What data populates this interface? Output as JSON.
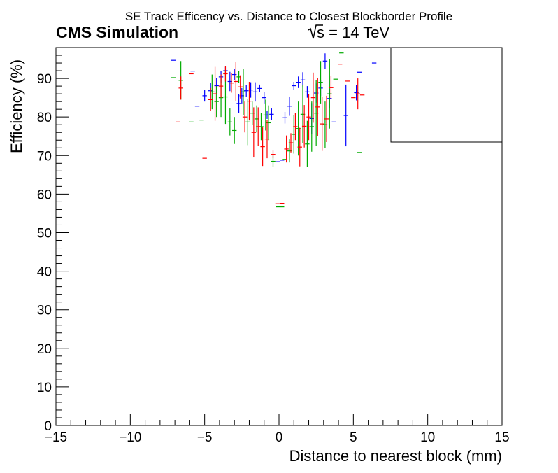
{
  "chart_data": {
    "type": "scatter",
    "title": "SE Track Efficency vs. Distance to Closest Blockborder Profile",
    "experiment_label": "CMS Simulation",
    "energy_label": "s = 14 TeV",
    "xlabel": "Distance to nearest block (mm)",
    "ylabel": "Efficiency (%)",
    "xlim": [
      -15,
      15
    ],
    "ylim": [
      0,
      98
    ],
    "x_ticks": [
      -15,
      -10,
      -5,
      0,
      5,
      10,
      15
    ],
    "x_tick_labels": [
      "−15",
      "−10",
      "−5",
      "0",
      "5",
      "10",
      "15"
    ],
    "y_ticks": [
      0,
      10,
      20,
      30,
      40,
      50,
      60,
      70,
      80,
      90
    ],
    "y_tick_labels": [
      "0",
      "10",
      "20",
      "30",
      "40",
      "50",
      "60",
      "70",
      "80",
      "90"
    ],
    "grid": false,
    "legend": "top-right (empty box)",
    "series": [
      {
        "color": "#0000ff",
        "points": [
          [
            -7.1,
            94.7,
            0
          ],
          [
            -5.8,
            91.9,
            0
          ],
          [
            -5.5,
            82.8,
            0
          ],
          [
            -5.0,
            85.5,
            1.5
          ],
          [
            -4.6,
            86.8,
            2.0
          ],
          [
            -4.2,
            88.1,
            2.0
          ],
          [
            -3.9,
            90.4,
            1.5
          ],
          [
            -3.6,
            92.0,
            1.0
          ],
          [
            -3.3,
            89.2,
            2.5
          ],
          [
            -3.0,
            91.0,
            1.5
          ],
          [
            -2.7,
            83.5,
            2.5
          ],
          [
            -2.5,
            85.5,
            2.0
          ],
          [
            -2.2,
            86.8,
            1.5
          ],
          [
            -1.9,
            87.0,
            2.0
          ],
          [
            -1.6,
            86.5,
            2.5
          ],
          [
            -1.3,
            87.4,
            1.0
          ],
          [
            -1.0,
            85.0,
            1.5
          ],
          [
            -0.8,
            80.5,
            1.0
          ],
          [
            -0.5,
            80.7,
            1.5
          ],
          [
            -0.1,
            68.4,
            0
          ],
          [
            0.2,
            68.8,
            0
          ],
          [
            0.4,
            79.8,
            1.5
          ],
          [
            0.7,
            82.8,
            2.5
          ],
          [
            1.0,
            88.1,
            1.0
          ],
          [
            1.3,
            89.0,
            1.5
          ],
          [
            1.6,
            89.6,
            2.0
          ],
          [
            1.9,
            86.5,
            1.5
          ],
          [
            2.2,
            79.6,
            4.0
          ],
          [
            2.5,
            86.2,
            2.5
          ],
          [
            2.8,
            87.5,
            2.0
          ],
          [
            3.1,
            94.5,
            2.0
          ],
          [
            3.4,
            84.8,
            2.5
          ],
          [
            3.7,
            78.7,
            0
          ],
          [
            4.5,
            80.4,
            8.0
          ],
          [
            5.2,
            86.3,
            2.0
          ],
          [
            5.4,
            91.6,
            0
          ],
          [
            6.4,
            94.0,
            0
          ]
        ]
      },
      {
        "color": "#00aa00",
        "points": [
          [
            -7.1,
            90.2,
            0
          ],
          [
            -6.6,
            89.5,
            5.0
          ],
          [
            -5.9,
            78.7,
            0
          ],
          [
            -5.2,
            79.2,
            0
          ],
          [
            -4.5,
            86.5,
            4.5
          ],
          [
            -4.2,
            84.0,
            4.0
          ],
          [
            -3.9,
            85.0,
            5.0
          ],
          [
            -3.6,
            85.2,
            7.0
          ],
          [
            -3.3,
            78.7,
            3.5
          ],
          [
            -3.0,
            76.5,
            3.5
          ],
          [
            -2.7,
            90.4,
            1.5
          ],
          [
            -2.4,
            86.5,
            6.0
          ],
          [
            -2.1,
            78.7,
            6.0
          ],
          [
            -1.8,
            81.0,
            3.0
          ],
          [
            -1.5,
            79.5,
            3.5
          ],
          [
            -1.2,
            77.5,
            3.5
          ],
          [
            -0.9,
            80.5,
            4.0
          ],
          [
            -0.7,
            78.5,
            4.5
          ],
          [
            -0.4,
            68.5,
            1.5
          ],
          [
            -0.05,
            56.7,
            0
          ],
          [
            0.2,
            56.7,
            0
          ],
          [
            0.4,
            69.0,
            0
          ],
          [
            0.7,
            71.2,
            3.0
          ],
          [
            1.0,
            75.5,
            5.0
          ],
          [
            1.3,
            77.0,
            7.0
          ],
          [
            1.6,
            80.7,
            7.5
          ],
          [
            1.9,
            73.0,
            6.0
          ],
          [
            2.2,
            77.5,
            6.5
          ],
          [
            2.5,
            81.0,
            8.5
          ],
          [
            2.8,
            89.0,
            5.5
          ],
          [
            3.1,
            78.0,
            6.0
          ],
          [
            3.4,
            86.0,
            9.0
          ],
          [
            3.8,
            89.8,
            0
          ],
          [
            4.2,
            96.6,
            0
          ],
          [
            5.4,
            70.8,
            0
          ]
        ]
      },
      {
        "color": "#ff0000",
        "points": [
          [
            -6.8,
            78.7,
            0
          ],
          [
            -6.6,
            87.5,
            3.0
          ],
          [
            -5.9,
            91.2,
            0
          ],
          [
            -5.0,
            69.3,
            0
          ],
          [
            -4.6,
            84.5,
            3.0
          ],
          [
            -4.3,
            86.0,
            7.0
          ],
          [
            -3.9,
            88.0,
            3.0
          ],
          [
            -3.6,
            91.2,
            2.0
          ],
          [
            -3.2,
            88.8,
            2.5
          ],
          [
            -2.9,
            89.2,
            5.0
          ],
          [
            -2.6,
            87.8,
            3.0
          ],
          [
            -2.3,
            80.0,
            4.0
          ],
          [
            -2.0,
            84.1,
            5.0
          ],
          [
            -1.7,
            76.0,
            6.5
          ],
          [
            -1.4,
            77.5,
            5.0
          ],
          [
            -1.1,
            72.3,
            5.0
          ],
          [
            -0.8,
            74.3,
            5.0
          ],
          [
            -0.4,
            70.3,
            1.0
          ],
          [
            -0.1,
            57.5,
            0
          ],
          [
            0.2,
            57.6,
            0
          ],
          [
            0.5,
            71.7,
            3.5
          ],
          [
            0.8,
            73.3,
            2.5
          ],
          [
            1.1,
            77.5,
            3.5
          ],
          [
            1.4,
            72.2,
            5.0
          ],
          [
            1.7,
            77.6,
            5.5
          ],
          [
            2.0,
            80.0,
            6.0
          ],
          [
            2.3,
            85.0,
            6.5
          ],
          [
            2.6,
            82.6,
            7.5
          ],
          [
            2.9,
            78.2,
            7.0
          ],
          [
            3.2,
            79.5,
            6.0
          ],
          [
            3.5,
            87.6,
            3.0
          ],
          [
            4.1,
            93.7,
            0
          ],
          [
            4.6,
            89.3,
            0
          ],
          [
            5.0,
            85.0,
            0
          ],
          [
            5.3,
            86.0,
            4.0
          ],
          [
            5.6,
            85.7,
            0
          ]
        ]
      }
    ]
  }
}
